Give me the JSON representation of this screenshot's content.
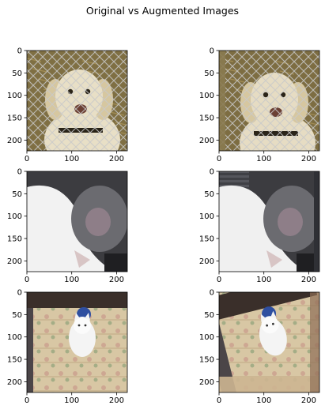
{
  "figure": {
    "title": "Original vs Augmented Images"
  },
  "chart_data": [
    {
      "type": "image",
      "row": 1,
      "col": 1,
      "image": "labrador dog behind chain-link fence on straw",
      "xlim": [
        0,
        224
      ],
      "ylim": [
        224,
        0
      ],
      "xticks": [
        0,
        100,
        200
      ],
      "yticks": [
        0,
        50,
        100,
        150,
        200
      ],
      "palette": {
        "bg": "#7f6f43",
        "fur": "#e8dfc6",
        "fence": "#bbbbbb",
        "dark": "#2a2418"
      }
    },
    {
      "type": "image",
      "row": 1,
      "col": 2,
      "image": "augmented labrador dog behind chain-link fence",
      "xlim": [
        0,
        224
      ],
      "ylim": [
        224,
        0
      ],
      "xticks": [
        0,
        100,
        200
      ],
      "yticks": [
        0,
        50,
        100,
        150,
        200
      ],
      "palette": {
        "bg": "#7d6d42",
        "fur": "#e6dcc3",
        "fence": "#bbbbbb",
        "dark": "#2a2418"
      }
    },
    {
      "type": "image",
      "row": 2,
      "col": 1,
      "image": "close-up of grey and white cat curled up",
      "xlim": [
        0,
        224
      ],
      "ylim": [
        224,
        0
      ],
      "xticks": [
        0,
        100,
        200
      ],
      "yticks": [
        0,
        50,
        100,
        150,
        200
      ],
      "palette": {
        "bg": "#3c3c40",
        "fur": "#f2f2f2",
        "grey": "#6b6b70"
      }
    },
    {
      "type": "image",
      "row": 2,
      "col": 2,
      "image": "augmented close-up of grey and white cat with stretched edges",
      "xlim": [
        0,
        224
      ],
      "ylim": [
        224,
        0
      ],
      "xticks": [
        0,
        100,
        200
      ],
      "yticks": [
        0,
        50,
        100,
        150,
        200
      ],
      "palette": {
        "bg": "#3c3c40",
        "fur": "#f0f0f0",
        "grey": "#6b6b70"
      }
    },
    {
      "type": "image",
      "row": 3,
      "col": 1,
      "image": "white cat sitting on patterned rug with blue ball",
      "xlim": [
        0,
        224
      ],
      "ylim": [
        224,
        0
      ],
      "xticks": [
        0,
        100,
        200
      ],
      "yticks": [
        0,
        50,
        100,
        150,
        200
      ],
      "palette": {
        "bg": "#c8b79c",
        "rug": "#d9c9a8",
        "dark": "#3a2f2a",
        "ball": "#2f4fa0"
      }
    },
    {
      "type": "image",
      "row": 3,
      "col": 2,
      "image": "augmented white cat on patterned rug, rotated",
      "xlim": [
        0,
        224
      ],
      "ylim": [
        224,
        0
      ],
      "xticks": [
        0,
        100,
        200
      ],
      "yticks": [
        0,
        50,
        100,
        150,
        200
      ],
      "palette": {
        "bg": "#c8b79c",
        "rug": "#d9c9a8",
        "dark": "#3a2f2a",
        "ball": "#2f4fa0"
      }
    }
  ]
}
